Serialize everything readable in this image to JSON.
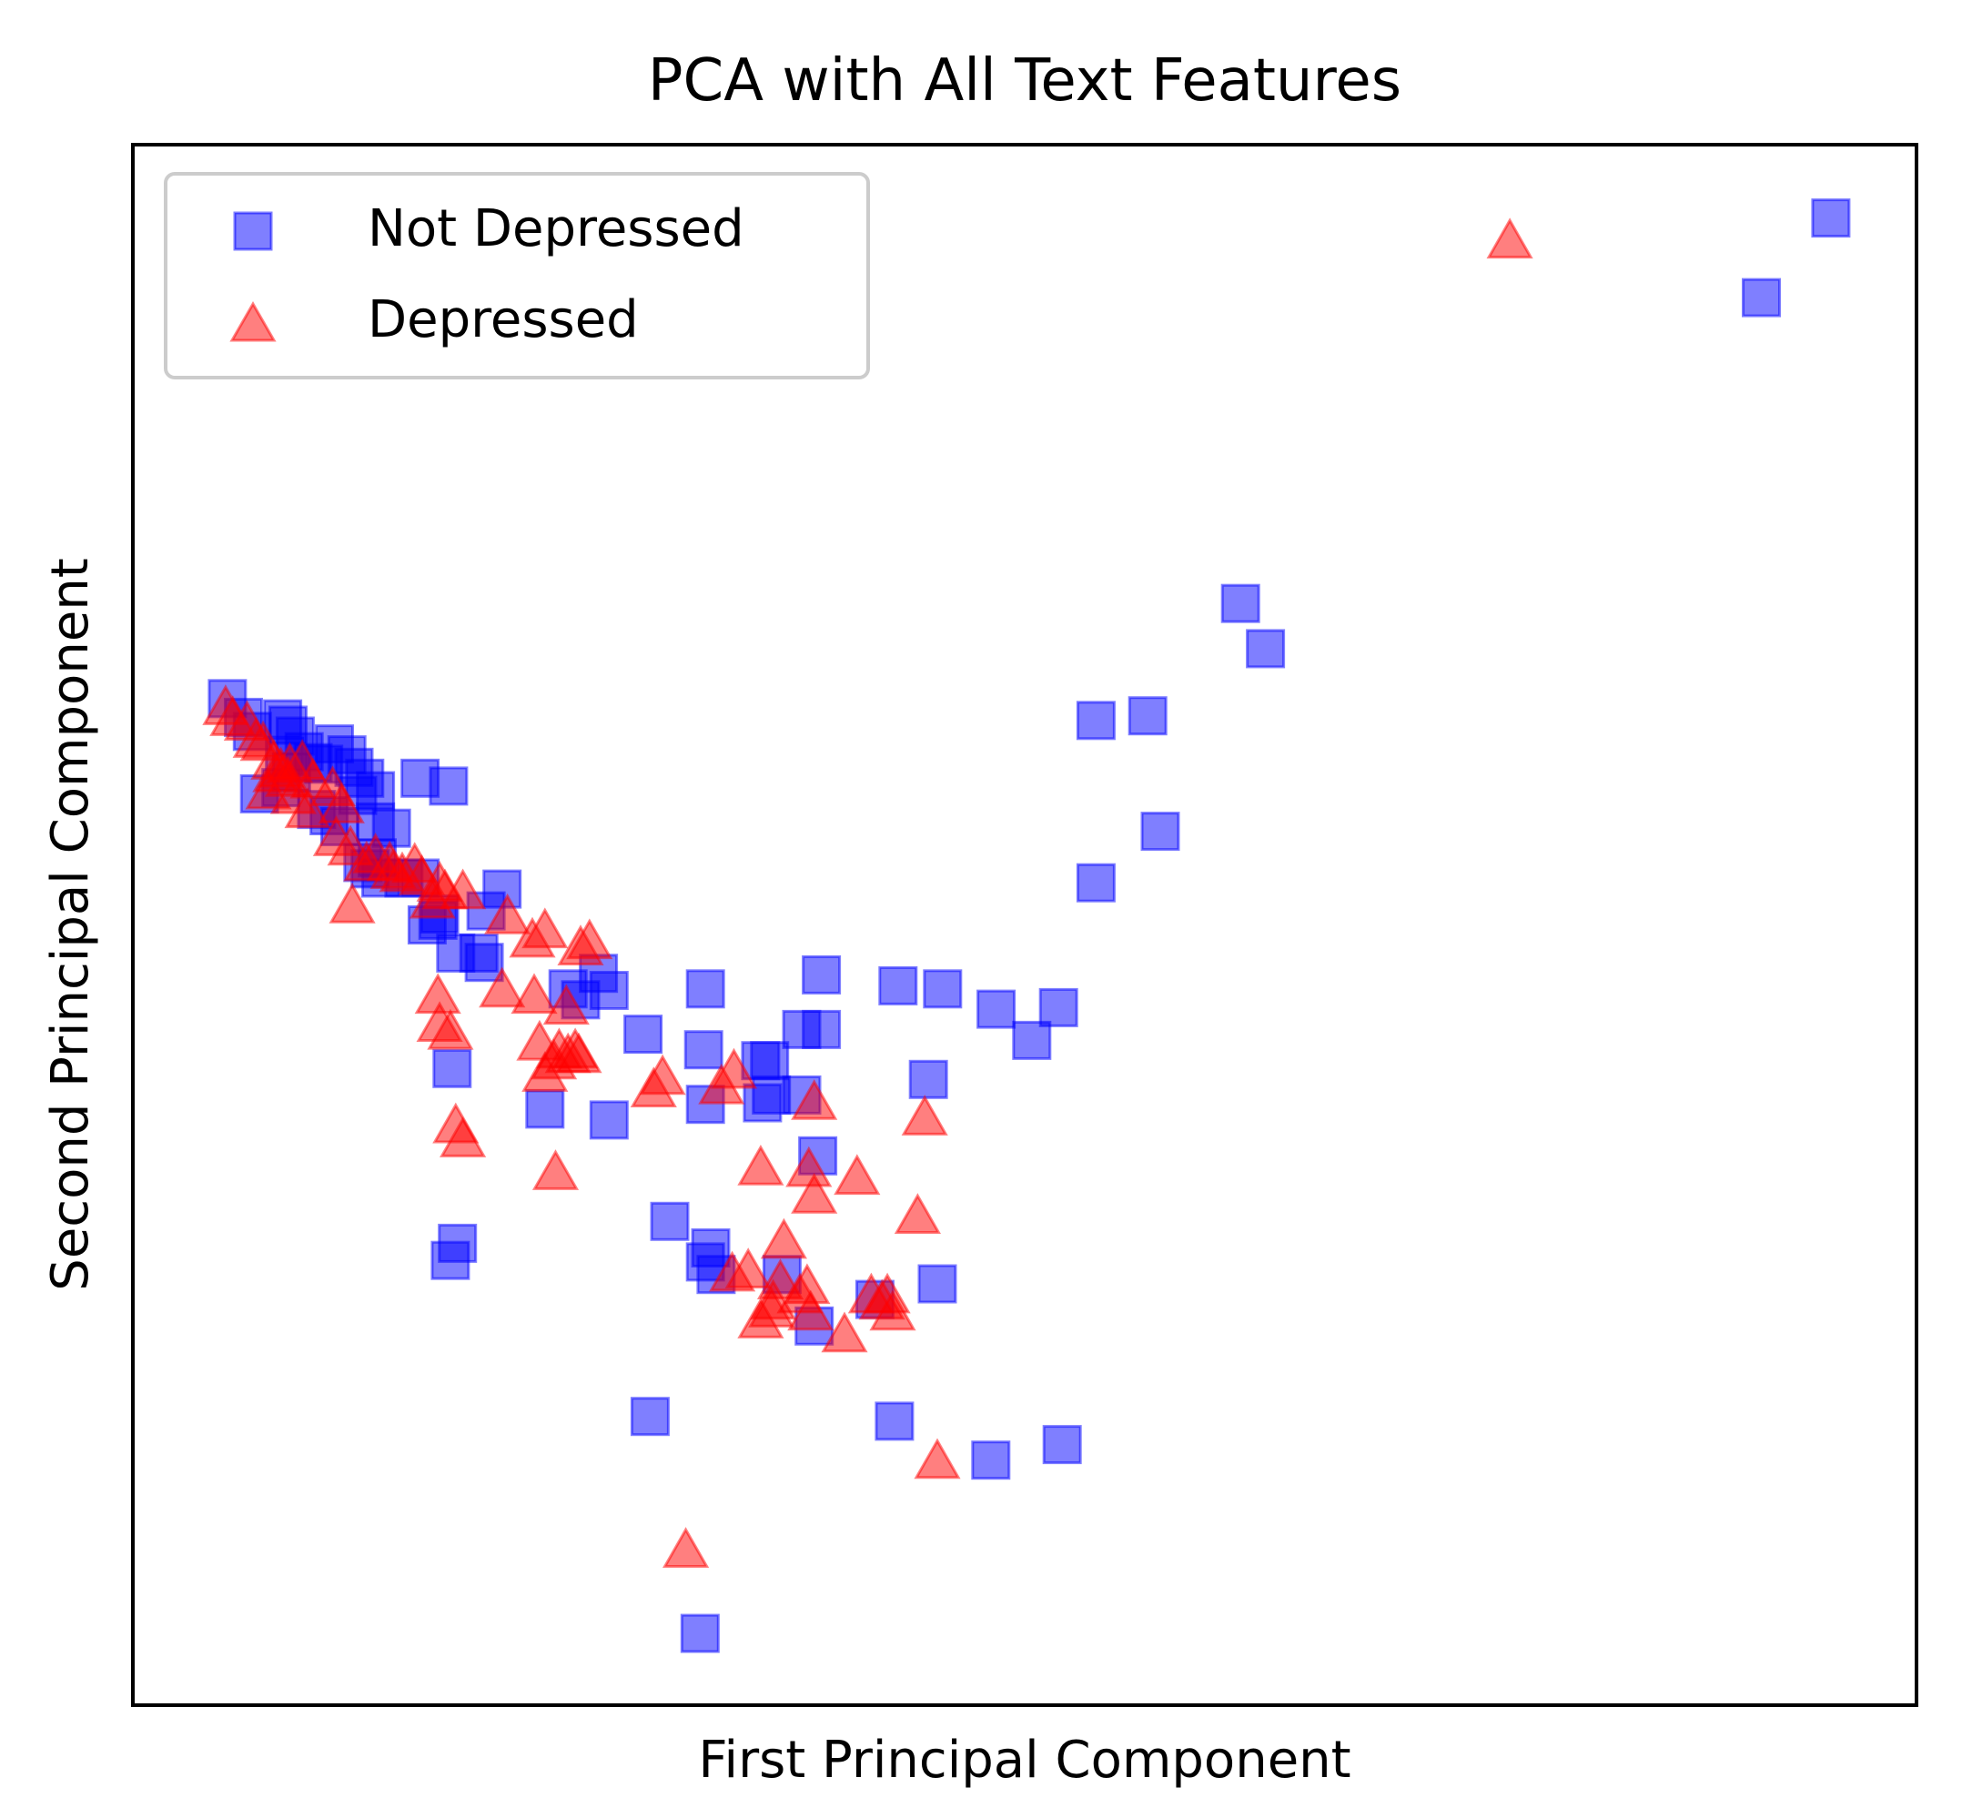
{
  "chart_data": {
    "type": "scatter",
    "title": "PCA with All Text Features",
    "xlabel": "First Principal Component",
    "ylabel": "Second Principal Component",
    "xlim": [
      0,
      100
    ],
    "ylim": [
      0,
      100
    ],
    "x_ticks_shown": false,
    "y_ticks_shown": false,
    "grid": false,
    "legend_position": "top-left",
    "series": [
      {
        "name": "Not Depressed",
        "marker": "square",
        "color": "#0000ff",
        "opacity": 0.5,
        "points": [
          [
            95.2,
            95.3
          ],
          [
            91.3,
            90.2
          ],
          [
            62.1,
            70.6
          ],
          [
            63.5,
            67.7
          ],
          [
            54.0,
            63.1
          ],
          [
            56.9,
            63.4
          ],
          [
            57.6,
            56.0
          ],
          [
            54.0,
            52.7
          ],
          [
            5.3,
            64.5
          ],
          [
            6.2,
            63.3
          ],
          [
            6.7,
            62.4
          ],
          [
            8.4,
            63.2
          ],
          [
            8.7,
            62.8
          ],
          [
            9.1,
            62.1
          ],
          [
            8.5,
            60.8
          ],
          [
            8.9,
            59.8
          ],
          [
            9.6,
            61.1
          ],
          [
            10.1,
            60.4
          ],
          [
            10.7,
            60.3
          ],
          [
            11.3,
            61.6
          ],
          [
            12.0,
            60.9
          ],
          [
            12.4,
            60.1
          ],
          [
            13.0,
            59.4
          ],
          [
            12.6,
            58.3
          ],
          [
            13.6,
            58.6
          ],
          [
            16.1,
            59.4
          ],
          [
            17.7,
            58.9
          ],
          [
            10.3,
            57.4
          ],
          [
            11.0,
            57.0
          ],
          [
            8.3,
            58.8
          ],
          [
            7.1,
            58.4
          ],
          [
            11.6,
            56.3
          ],
          [
            13.6,
            56.6
          ],
          [
            14.5,
            56.2
          ],
          [
            15.2,
            53.0
          ],
          [
            16.1,
            53.0
          ],
          [
            13.9,
            53.0
          ],
          [
            13.3,
            53.6
          ],
          [
            13.7,
            54.3
          ],
          [
            12.9,
            54.0
          ],
          [
            17.1,
            50.3
          ],
          [
            16.5,
            50.0
          ],
          [
            17.2,
            50.7
          ],
          [
            20.7,
            52.3
          ],
          [
            19.8,
            50.9
          ],
          [
            18.1,
            48.2
          ],
          [
            19.4,
            48.2
          ],
          [
            19.7,
            47.6
          ],
          [
            17.9,
            40.8
          ],
          [
            24.4,
            45.9
          ],
          [
            25.1,
            45.2
          ],
          [
            26.1,
            46.9
          ],
          [
            26.7,
            45.8
          ],
          [
            32.1,
            45.9
          ],
          [
            38.6,
            43.3
          ],
          [
            38.6,
            46.8
          ],
          [
            42.9,
            46.1
          ],
          [
            45.4,
            45.9
          ],
          [
            48.4,
            44.6
          ],
          [
            51.9,
            44.7
          ],
          [
            50.4,
            42.6
          ],
          [
            28.6,
            43.0
          ],
          [
            32.0,
            42.0
          ],
          [
            37.5,
            43.3
          ],
          [
            35.2,
            41.3
          ],
          [
            35.7,
            41.3
          ],
          [
            23.1,
            38.2
          ],
          [
            26.7,
            37.5
          ],
          [
            32.1,
            38.5
          ],
          [
            35.3,
            38.6
          ],
          [
            44.6,
            40.1
          ],
          [
            37.5,
            39.1
          ],
          [
            35.8,
            39.1
          ],
          [
            38.4,
            35.2
          ],
          [
            17.8,
            28.5
          ],
          [
            18.2,
            29.6
          ],
          [
            30.1,
            31.0
          ],
          [
            32.4,
            29.3
          ],
          [
            32.1,
            28.4
          ],
          [
            32.7,
            27.6
          ],
          [
            36.4,
            27.6
          ],
          [
            41.6,
            26.0
          ],
          [
            45.1,
            27.0
          ],
          [
            38.2,
            24.3
          ],
          [
            29.0,
            18.5
          ],
          [
            42.7,
            18.2
          ],
          [
            48.1,
            15.7
          ],
          [
            52.1,
            16.7
          ],
          [
            31.8,
            4.6
          ]
        ]
      },
      {
        "name": "Depressed",
        "marker": "triangle-up",
        "color": "#ff0000",
        "opacity": 0.5,
        "points": [
          [
            77.2,
            93.8
          ],
          [
            5.2,
            63.9
          ],
          [
            5.6,
            63.2
          ],
          [
            6.4,
            62.9
          ],
          [
            6.9,
            61.8
          ],
          [
            7.3,
            61.6
          ],
          [
            7.9,
            60.4
          ],
          [
            8.3,
            59.9
          ],
          [
            8.8,
            60.2
          ],
          [
            9.5,
            60.4
          ],
          [
            10.1,
            59.2
          ],
          [
            8.7,
            59.3
          ],
          [
            9.0,
            58.2
          ],
          [
            7.6,
            58.5
          ],
          [
            8.0,
            59.6
          ],
          [
            11.2,
            58.7
          ],
          [
            11.7,
            57.6
          ],
          [
            9.8,
            57.3
          ],
          [
            11.4,
            55.5
          ],
          [
            12.2,
            54.9
          ],
          [
            13.1,
            53.9
          ],
          [
            13.6,
            54.4
          ],
          [
            14.4,
            53.9
          ],
          [
            15.1,
            53.2
          ],
          [
            16.2,
            53.0
          ],
          [
            17.2,
            52.6
          ],
          [
            14.6,
            53.4
          ],
          [
            15.8,
            53.8
          ],
          [
            17.5,
            52.1
          ],
          [
            18.5,
            52.1
          ],
          [
            16.8,
            51.5
          ],
          [
            12.3,
            51.2
          ],
          [
            21.0,
            50.5
          ],
          [
            23.1,
            49.6
          ],
          [
            22.4,
            49.0
          ],
          [
            25.1,
            48.5
          ],
          [
            25.6,
            48.9
          ],
          [
            17.1,
            45.4
          ],
          [
            20.7,
            45.8
          ],
          [
            22.5,
            45.4
          ],
          [
            24.3,
            44.7
          ],
          [
            17.2,
            43.6
          ],
          [
            17.8,
            43.1
          ],
          [
            22.8,
            42.4
          ],
          [
            23.9,
            41.9
          ],
          [
            24.4,
            41.6
          ],
          [
            24.8,
            41.9
          ],
          [
            25.0,
            41.6
          ],
          [
            23.6,
            41.2
          ],
          [
            23.1,
            40.4
          ],
          [
            29.2,
            39.4
          ],
          [
            29.7,
            40.2
          ],
          [
            33.7,
            40.6
          ],
          [
            38.2,
            38.6
          ],
          [
            44.4,
            37.6
          ],
          [
            33.0,
            39.6
          ],
          [
            18.1,
            37.1
          ],
          [
            18.5,
            36.2
          ],
          [
            23.7,
            34.1
          ],
          [
            35.2,
            34.4
          ],
          [
            37.9,
            34.3
          ],
          [
            40.6,
            33.8
          ],
          [
            38.2,
            32.6
          ],
          [
            44.0,
            31.3
          ],
          [
            36.5,
            29.7
          ],
          [
            33.6,
            27.6
          ],
          [
            35.8,
            25.3
          ],
          [
            36.3,
            27.1
          ],
          [
            42.0,
            25.8
          ],
          [
            42.3,
            26.2
          ],
          [
            37.4,
            26.2
          ],
          [
            37.8,
            26.8
          ],
          [
            35.9,
            25.8
          ],
          [
            38.0,
            25.1
          ],
          [
            41.4,
            26.2
          ],
          [
            42.6,
            25.1
          ],
          [
            45.1,
            15.6
          ],
          [
            31.0,
            9.9
          ],
          [
            34.5,
            27.8
          ],
          [
            35.2,
            24.6
          ],
          [
            39.9,
            23.7
          ]
        ]
      }
    ]
  }
}
